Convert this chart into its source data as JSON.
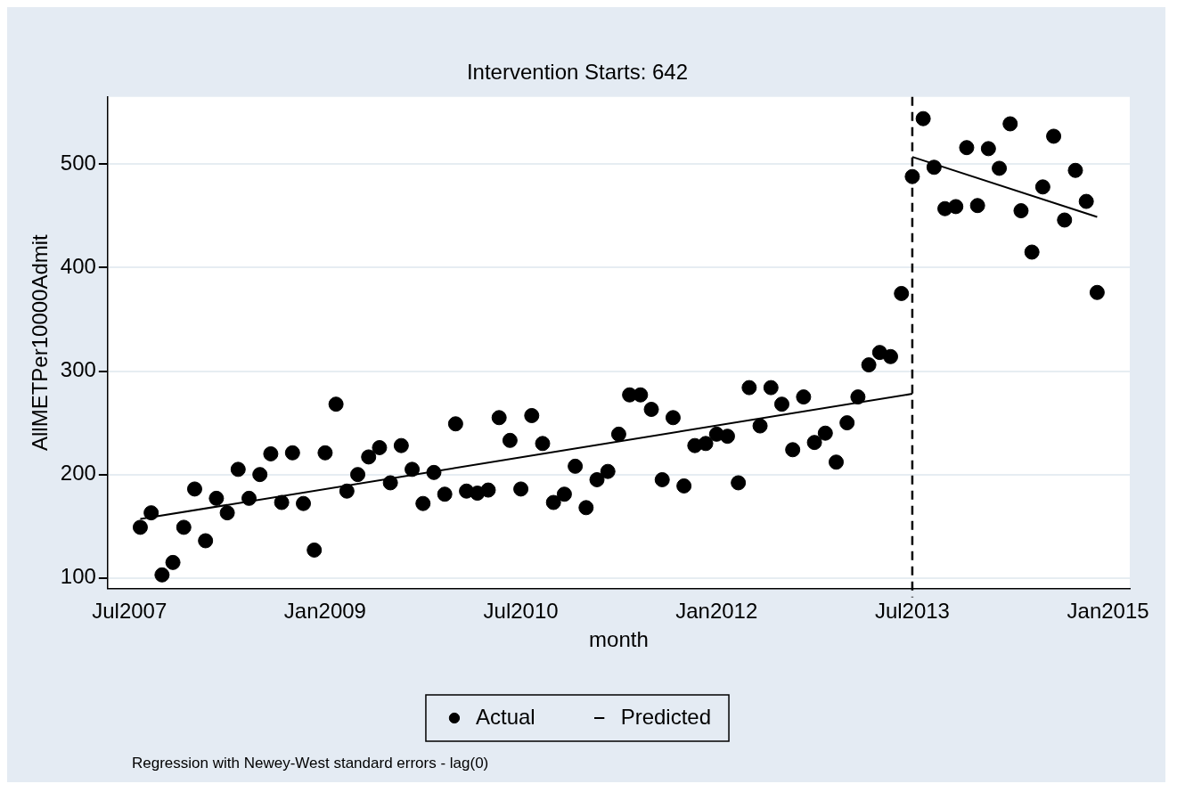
{
  "chart_data": {
    "type": "scatter",
    "title": "Intervention Starts: 642",
    "xlabel": "month",
    "ylabel": "AllMETPer10000Admit",
    "annotations": [
      "Regression with Newey-West standard errors - lag(0)"
    ],
    "xlim": [
      "2007-05",
      "2015-03"
    ],
    "xticks": [
      {
        "value": "2007-07",
        "label": "Jul2007"
      },
      {
        "value": "2009-01",
        "label": "Jan2009"
      },
      {
        "value": "2010-07",
        "label": "Jul2010"
      },
      {
        "value": "2012-01",
        "label": "Jan2012"
      },
      {
        "value": "2013-07",
        "label": "Jul2013"
      },
      {
        "value": "2015-01",
        "label": "Jan2015"
      }
    ],
    "ylim": [
      90,
      565
    ],
    "yticks": [
      100,
      200,
      300,
      400,
      500
    ],
    "grid": "y",
    "legend": "bottom",
    "ref_lines": [
      {
        "axis": "x",
        "value": "2013-07",
        "color": "#000000",
        "line_style": "dashed"
      }
    ],
    "series": [
      {
        "name": "Actual",
        "type": "scatter",
        "color": "#000000",
        "marker": "circle",
        "x": [
          "2007-08",
          "2007-09",
          "2007-10",
          "2007-11",
          "2007-12",
          "2008-01",
          "2008-02",
          "2008-03",
          "2008-04",
          "2008-05",
          "2008-06",
          "2008-07",
          "2008-08",
          "2008-09",
          "2008-10",
          "2008-11",
          "2008-12",
          "2009-01",
          "2009-02",
          "2009-03",
          "2009-04",
          "2009-05",
          "2009-06",
          "2009-07",
          "2009-08",
          "2009-09",
          "2009-10",
          "2009-11",
          "2009-12",
          "2010-01",
          "2010-02",
          "2010-03",
          "2010-04",
          "2010-05",
          "2010-06",
          "2010-07",
          "2010-08",
          "2010-09",
          "2010-10",
          "2010-11",
          "2010-12",
          "2011-01",
          "2011-02",
          "2011-03",
          "2011-04",
          "2011-05",
          "2011-06",
          "2011-07",
          "2011-08",
          "2011-09",
          "2011-10",
          "2011-11",
          "2011-12",
          "2012-01",
          "2012-02",
          "2012-03",
          "2012-04",
          "2012-05",
          "2012-06",
          "2012-07",
          "2012-08",
          "2012-09",
          "2012-10",
          "2012-11",
          "2012-12",
          "2013-01",
          "2013-02",
          "2013-03",
          "2013-04",
          "2013-05",
          "2013-06",
          "2013-07",
          "2013-08",
          "2013-09",
          "2013-10",
          "2013-11",
          "2013-12",
          "2014-01",
          "2014-02",
          "2014-03",
          "2014-04",
          "2014-05",
          "2014-06",
          "2014-07",
          "2014-08",
          "2014-09",
          "2014-10",
          "2014-11",
          "2014-12"
        ],
        "values": [
          149,
          163,
          103,
          115,
          149,
          186,
          136,
          177,
          163,
          205,
          177,
          200,
          220,
          173,
          221,
          172,
          127,
          221,
          268,
          184,
          200,
          217,
          226,
          192,
          228,
          205,
          172,
          202,
          181,
          249,
          184,
          182,
          185,
          255,
          233,
          186,
          257,
          230,
          173,
          181,
          208,
          168,
          195,
          203,
          239,
          277,
          277,
          263,
          195,
          255,
          189,
          228,
          230,
          239,
          237,
          192,
          284,
          247,
          284,
          268,
          224,
          275,
          231,
          240,
          212,
          250,
          275,
          306,
          318,
          314,
          375,
          488,
          544,
          497,
          457,
          459,
          516,
          460,
          515,
          496,
          539,
          455,
          415,
          478,
          527,
          446,
          494,
          464,
          376
        ]
      },
      {
        "name": "Predicted",
        "type": "line",
        "color": "#000000",
        "marker": "none",
        "line_style": "solid",
        "x": [
          "2007-08",
          "2013-07"
        ],
        "values": [
          157,
          278
        ]
      },
      {
        "type": "line",
        "color": "#000000",
        "marker": "none",
        "line_style": "solid",
        "x": [
          "2013-07",
          "2014-12"
        ],
        "values": [
          507,
          449
        ]
      }
    ]
  }
}
